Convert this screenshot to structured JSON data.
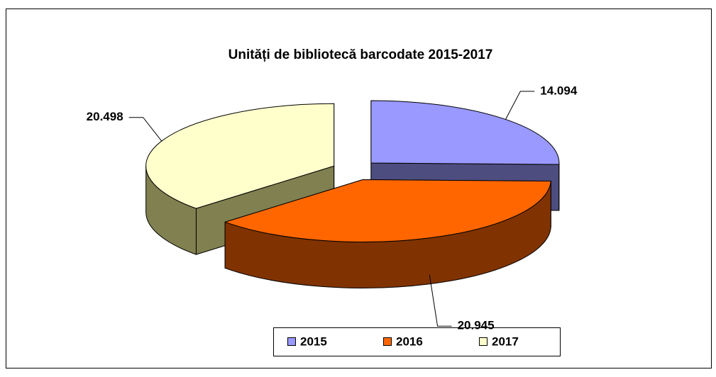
{
  "chart_data": {
    "type": "pie3d",
    "title": "Unități de bibliotecă barcodate 2015-2017",
    "categories": [
      "2015",
      "2016",
      "2017"
    ],
    "values": [
      14094,
      20945,
      20498
    ],
    "value_labels": [
      "14.094",
      "20.945",
      "20.498"
    ],
    "colors": [
      "#9999ff",
      "#ff6600",
      "#ffffcc"
    ],
    "side_colors": [
      "#4d4d80",
      "#803300",
      "#808050"
    ],
    "legend": "bottom"
  }
}
